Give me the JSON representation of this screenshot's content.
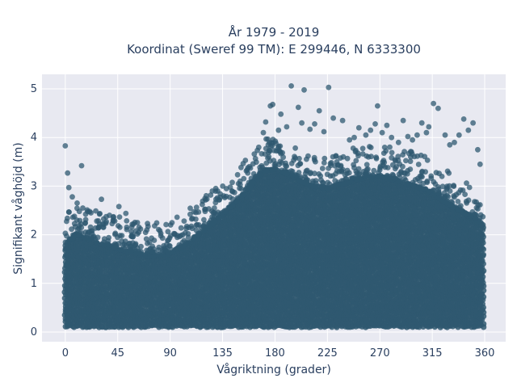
{
  "chart_data": {
    "type": "scatter",
    "title": [
      "År 1979 - 2019",
      "Koordinat (Sweref 99 TM): E 299446, N 6333300"
    ],
    "xlabel": "Vågriktning (grader)",
    "ylabel": "Signifikant våghöjd (m)",
    "xlim": [
      -20,
      378
    ],
    "ylim": [
      -0.2,
      5.3
    ],
    "xticks": [
      0,
      45,
      90,
      135,
      180,
      225,
      270,
      315,
      360
    ],
    "yticks": [
      0,
      1,
      2,
      3,
      4,
      5
    ],
    "grid": true,
    "background": "#e8e9f1",
    "marker_color": "#2f5870",
    "density_envelope": {
      "x": [
        0,
        10,
        20,
        30,
        45,
        60,
        75,
        90,
        105,
        120,
        135,
        150,
        160,
        170,
        180,
        195,
        210,
        225,
        240,
        255,
        270,
        285,
        300,
        315,
        330,
        345,
        360
      ],
      "upper": [
        1.8,
        2.0,
        1.9,
        1.8,
        1.7,
        1.6,
        1.55,
        1.6,
        1.8,
        2.1,
        2.4,
        2.75,
        3.0,
        3.3,
        3.35,
        3.2,
        3.0,
        2.95,
        3.05,
        3.15,
        3.2,
        3.1,
        3.0,
        2.85,
        2.6,
        2.4,
        2.2
      ],
      "lower": [
        0.12,
        0.12,
        0.12,
        0.12,
        0.12,
        0.12,
        0.12,
        0.12,
        0.12,
        0.12,
        0.12,
        0.12,
        0.12,
        0.12,
        0.12,
        0.12,
        0.12,
        0.12,
        0.12,
        0.12,
        0.12,
        0.12,
        0.12,
        0.12,
        0.12,
        0.12,
        0.12
      ]
    },
    "outliers": {
      "x": [
        0,
        2,
        3,
        6,
        12,
        14,
        15,
        22,
        27,
        31,
        38,
        41,
        46,
        52,
        57,
        63,
        70,
        82,
        94,
        106,
        112,
        120,
        128,
        136,
        143,
        150,
        158,
        166,
        170,
        172,
        176,
        178,
        183,
        185,
        190,
        194,
        200,
        203,
        205,
        210,
        214,
        218,
        222,
        226,
        230,
        238,
        244,
        248,
        252,
        258,
        262,
        266,
        268,
        272,
        276,
        280,
        286,
        290,
        294,
        298,
        302,
        306,
        310,
        312,
        316,
        320,
        326,
        330,
        334,
        338,
        342,
        346,
        350,
        354,
        356
      ],
      "y": [
        3.83,
        3.27,
        2.97,
        2.78,
        2.48,
        3.42,
        2.55,
        2.45,
        2.28,
        2.73,
        2.4,
        2.3,
        2.58,
        2.44,
        2.16,
        2.05,
        2.1,
        1.98,
        2.02,
        2.15,
        2.32,
        2.48,
        2.55,
        2.8,
        2.9,
        3.1,
        3.4,
        3.8,
        4.1,
        4.32,
        4.65,
        4.68,
        4.15,
        4.48,
        4.22,
        5.06,
        4.62,
        4.3,
        4.98,
        4.17,
        4.28,
        4.55,
        4.12,
        5.03,
        4.4,
        4.35,
        3.95,
        4.0,
        4.2,
        4.05,
        4.15,
        4.28,
        4.65,
        4.1,
        4.25,
        4.0,
        3.9,
        4.35,
        4.02,
        3.95,
        4.05,
        4.3,
        4.1,
        4.22,
        4.7,
        4.6,
        4.05,
        3.85,
        3.9,
        4.05,
        4.38,
        4.15,
        4.3,
        3.75,
        3.45
      ]
    }
  }
}
